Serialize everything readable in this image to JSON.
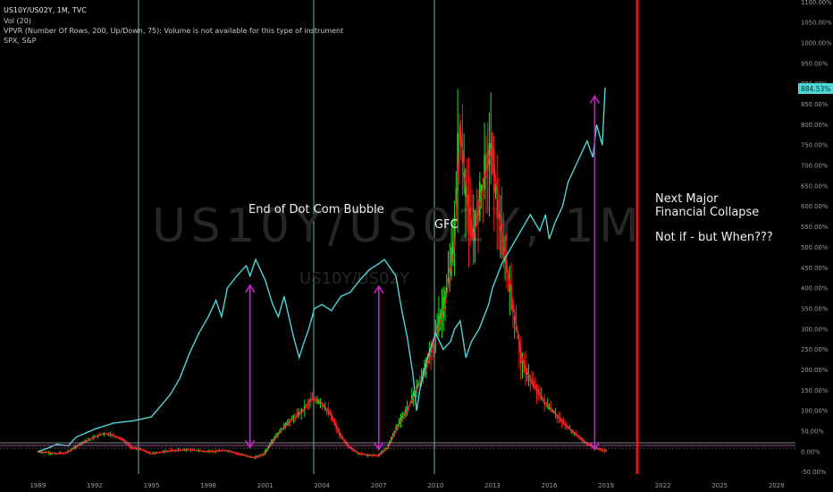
{
  "header": {
    "symbol_line": "US10Y/US02Y, 1M, TVC",
    "vol_line": "Vol (20)",
    "vpvr_line": "VPVR (Number Of Rows, 200, Up/Down, 75): Volume is not available for this type of instrument",
    "compare_line": "SPX, S&P"
  },
  "watermark": {
    "big": "US10Y/US02Y, 1M",
    "small": "US10Y/US02Y"
  },
  "annotations": {
    "dotcom": "End of Dot Com Bubble",
    "gfc": "GFC",
    "next_line1": "Next Major",
    "next_line2": "Financial Collapse",
    "question": "Not if - but When???"
  },
  "colors": {
    "spx_line": "#4dd6d6",
    "up_candle": "#22dd22",
    "down_candle": "#ee2222",
    "arrow": "#cc22cc",
    "marker_line": "#ee1111",
    "vline": "#6fb39a"
  },
  "chart_data": {
    "type": "line",
    "x_ticks": [
      "1989",
      "1992",
      "1995",
      "1998",
      "2001",
      "2004",
      "2007",
      "2010",
      "2013",
      "2016",
      "2019",
      "2022",
      "2025",
      "2028"
    ],
    "y_ticks": [
      "1100.00%",
      "1050.00%",
      "1000.00%",
      "950.00%",
      "900.00%",
      "850.00%",
      "800.00%",
      "750.00%",
      "700.00%",
      "650.00%",
      "600.00%",
      "550.00%",
      "500.00%",
      "450.00%",
      "400.00%",
      "350.00%",
      "300.00%",
      "250.00%",
      "200.00%",
      "150.00%",
      "100.00%",
      "50.00%",
      "0.00%",
      "-50.00%"
    ],
    "ylim": [
      -55,
      1105
    ],
    "xlim": [
      1987.0,
      2029.0
    ],
    "series": [
      {
        "name": "SPX, S&P",
        "x": [
          1989.0,
          1989.5,
          1990.0,
          1990.6,
          1991.0,
          1992.0,
          1993.0,
          1994.0,
          1995.0,
          1996.0,
          1996.5,
          1997.0,
          1997.5,
          1998.0,
          1998.4,
          1998.7,
          1999.0,
          1999.5,
          2000.0,
          2000.2,
          2000.5,
          2000.8,
          2001.0,
          2001.4,
          2001.7,
          2002.0,
          2002.5,
          2002.8,
          2003.0,
          2003.3,
          2003.6,
          2004.0,
          2004.5,
          2005.0,
          2005.5,
          2006.0,
          2006.5,
          2007.0,
          2007.3,
          2007.6,
          2007.9,
          2008.2,
          2008.5,
          2008.8,
          2009.0,
          2009.2,
          2009.5,
          2010.0,
          2010.4,
          2010.8,
          2011.0,
          2011.3,
          2011.6,
          2011.9,
          2012.3,
          2012.8,
          2013.0,
          2013.5,
          2014.0,
          2014.5,
          2015.0,
          2015.5,
          2015.8,
          2016.0,
          2016.3,
          2016.7,
          2017.0,
          2017.5,
          2018.0,
          2018.3,
          2018.5,
          2018.8,
          2018.95
        ],
        "values": [
          0,
          8,
          18,
          14,
          35,
          55,
          70,
          75,
          85,
          140,
          180,
          240,
          290,
          330,
          370,
          330,
          400,
          430,
          455,
          430,
          470,
          440,
          420,
          360,
          330,
          380,
          280,
          230,
          260,
          300,
          350,
          360,
          345,
          380,
          390,
          420,
          445,
          460,
          470,
          450,
          430,
          350,
          280,
          190,
          100,
          160,
          220,
          290,
          250,
          270,
          300,
          320,
          230,
          270,
          300,
          360,
          400,
          460,
          500,
          540,
          580,
          540,
          580,
          520,
          560,
          600,
          660,
          710,
          760,
          720,
          800,
          750,
          890
        ],
        "last_label": "884.53%"
      },
      {
        "name": "US10Y/US02Y",
        "x": [
          1989.0,
          1989.5,
          1990.0,
          1990.5,
          1991.0,
          1991.5,
          1992.0,
          1992.5,
          1993.0,
          1993.5,
          1994.0,
          1994.5,
          1995.0,
          1996.0,
          1997.0,
          1998.0,
          1999.0,
          2000.0,
          2000.5,
          2001.0,
          2001.5,
          2002.0,
          2002.5,
          2003.0,
          2003.5,
          2004.0,
          2004.5,
          2005.0,
          2005.5,
          2006.0,
          2006.5,
          2007.0,
          2007.5,
          2008.0,
          2008.5,
          2009.0,
          2009.5,
          2010.0,
          2010.5,
          2011.0,
          2011.3,
          2011.6,
          2012.0,
          2012.3,
          2012.6,
          2013.0,
          2013.3,
          2013.6,
          2013.9,
          2014.3,
          2014.6,
          2015.0,
          2015.4,
          2015.8,
          2016.2,
          2016.6,
          2017.0,
          2017.5,
          2018.0,
          2018.5,
          2019.0
        ],
        "values": [
          0,
          -2,
          -5,
          -3,
          10,
          25,
          35,
          45,
          40,
          30,
          10,
          5,
          -5,
          2,
          5,
          0,
          3,
          -10,
          -15,
          -5,
          30,
          60,
          80,
          100,
          130,
          120,
          90,
          40,
          10,
          -5,
          -8,
          -10,
          10,
          60,
          100,
          150,
          200,
          280,
          360,
          500,
          800,
          650,
          520,
          600,
          680,
          750,
          600,
          500,
          420,
          300,
          220,
          180,
          150,
          120,
          100,
          80,
          60,
          40,
          20,
          8,
          2
        ]
      }
    ]
  }
}
